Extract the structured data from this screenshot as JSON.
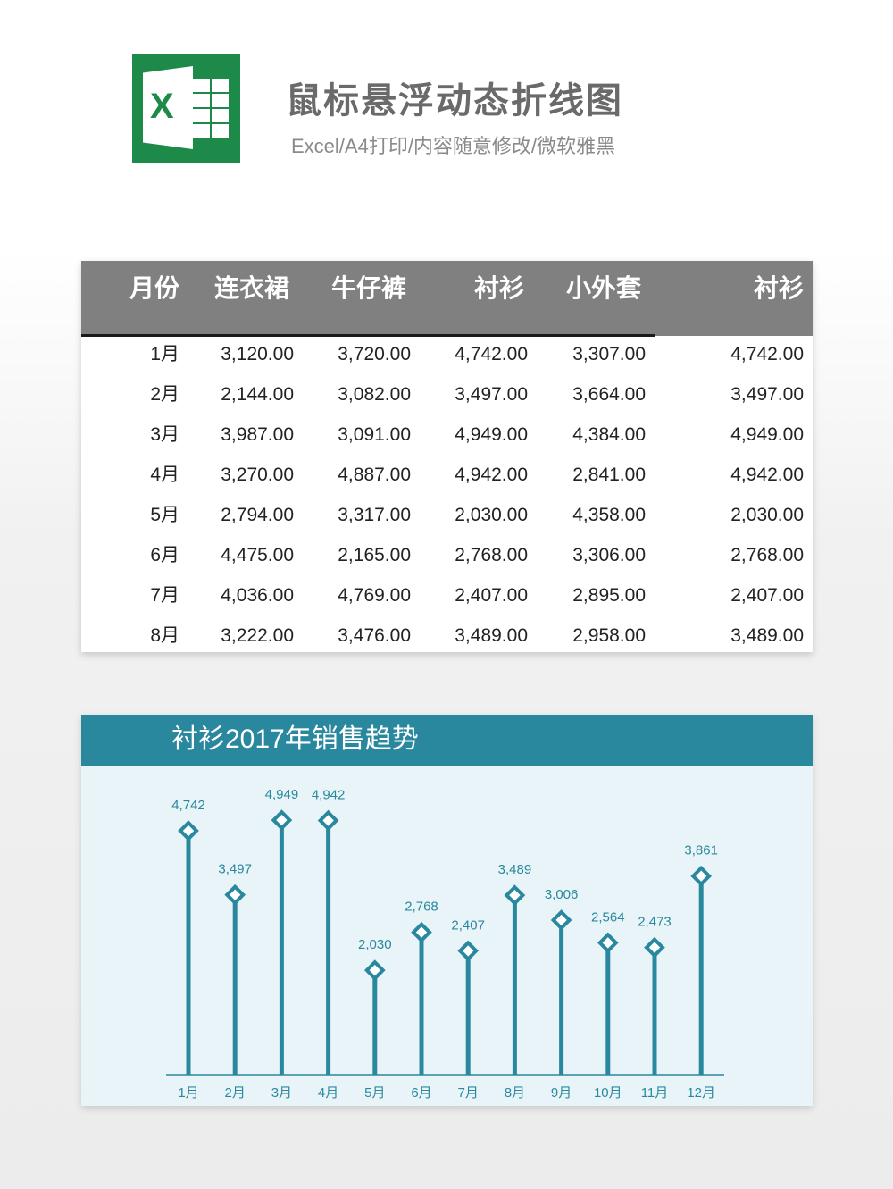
{
  "header": {
    "title": "鼠标悬浮动态折线图",
    "subtitle": "Excel/A4打印/内容随意修改/微软雅黑",
    "logo_letter": "X",
    "logo_icon": "excel-icon",
    "logo_color": "#1e8a4a"
  },
  "table": {
    "columns": [
      "月份",
      "连衣裙",
      "牛仔裤",
      "衬衫",
      "小外套",
      "衬衫"
    ],
    "rows": [
      [
        "1月",
        "3,120.00",
        "3,720.00",
        "4,742.00",
        "3,307.00",
        "4,742.00"
      ],
      [
        "2月",
        "2,144.00",
        "3,082.00",
        "3,497.00",
        "3,664.00",
        "3,497.00"
      ],
      [
        "3月",
        "3,987.00",
        "3,091.00",
        "4,949.00",
        "4,384.00",
        "4,949.00"
      ],
      [
        "4月",
        "3,270.00",
        "4,887.00",
        "4,942.00",
        "2,841.00",
        "4,942.00"
      ],
      [
        "5月",
        "2,794.00",
        "3,317.00",
        "2,030.00",
        "4,358.00",
        "2,030.00"
      ],
      [
        "6月",
        "4,475.00",
        "2,165.00",
        "2,768.00",
        "3,306.00",
        "2,768.00"
      ],
      [
        "7月",
        "4,036.00",
        "4,769.00",
        "2,407.00",
        "2,895.00",
        "2,407.00"
      ],
      [
        "8月",
        "3,222.00",
        "3,476.00",
        "3,489.00",
        "2,958.00",
        "3,489.00"
      ]
    ],
    "header_color": "#808080"
  },
  "chart_data": {
    "type": "bar",
    "style": "lollipop-diamond",
    "title": "衬衫2017年销售趋势",
    "categories": [
      "1月",
      "2月",
      "3月",
      "4月",
      "5月",
      "6月",
      "7月",
      "8月",
      "9月",
      "10月",
      "11月",
      "12月"
    ],
    "values": [
      4742,
      3497,
      4949,
      4942,
      2030,
      2768,
      2407,
      3489,
      3006,
      2564,
      2473,
      3861
    ],
    "data_labels": [
      "4,742",
      "3,497",
      "4,949",
      "4,942",
      "2,030",
      "2,768",
      "2,407",
      "3,489",
      "3,006",
      "2,564",
      "2,473",
      "3,861"
    ],
    "ylim": [
      0,
      5400
    ],
    "grid": false,
    "legend": "none",
    "colors": {
      "bar": "#2a889e",
      "label": "#2a889e",
      "background": "#e8f4f8",
      "header": "#2a889e"
    }
  }
}
